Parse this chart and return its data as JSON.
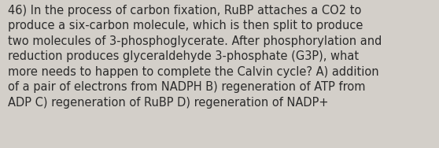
{
  "lines": [
    "46) In the process of carbon fixation, RuBP attaches a CO2 to",
    "produce a six-carbon molecule, which is then split to produce",
    "two molecules of 3-phosphoglycerate. After phosphorylation and",
    "reduction produces glyceraldehyde 3-phosphate (G3P), what",
    "more needs to happen to complete the Calvin cycle? A) addition",
    "of a pair of electrons from NADPH B) regeneration of ATP from",
    "ADP C) regeneration of RuBP D) regeneration of NADP+"
  ],
  "background_color": "#d3cfc9",
  "text_color": "#2b2b2b",
  "font_size": 10.5,
  "fig_width": 5.58,
  "fig_height": 1.88,
  "dpi": 100
}
